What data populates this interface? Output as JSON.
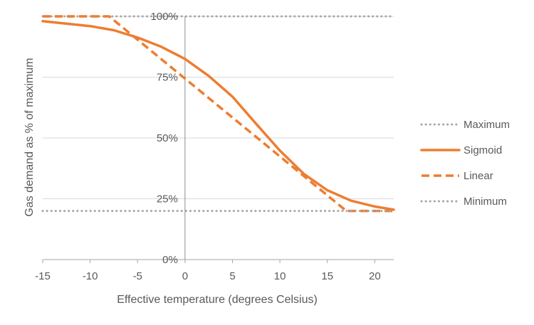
{
  "chart_data": {
    "type": "line",
    "title": "",
    "xlabel": "Effective temperature (degrees Celsius)",
    "ylabel": "Gas demand as % of maximum",
    "xlim": [
      -15,
      22
    ],
    "ylim": [
      0,
      100
    ],
    "x_ticks": [
      -15,
      -10,
      -5,
      0,
      5,
      10,
      15,
      20
    ],
    "y_ticks": [
      0,
      25,
      50,
      75,
      100
    ],
    "y_tick_labels": [
      "0%",
      "25%",
      "50%",
      "75%",
      "100%"
    ],
    "grid": "horizontal",
    "legend_position": "right",
    "series": [
      {
        "name": "Maximum",
        "style": "dotted",
        "color": "#a6a6a6",
        "points": [
          [
            -15,
            100
          ],
          [
            22,
            100
          ]
        ]
      },
      {
        "name": "Sigmoid",
        "style": "solid",
        "color": "#ed7d31",
        "points": [
          [
            -15,
            98
          ],
          [
            -12.5,
            97
          ],
          [
            -10,
            96
          ],
          [
            -7.5,
            94.3
          ],
          [
            -5,
            91.3
          ],
          [
            -2.5,
            87.5
          ],
          [
            0,
            82.5
          ],
          [
            2.5,
            75.5
          ],
          [
            5,
            67
          ],
          [
            7.5,
            55.8
          ],
          [
            10,
            44.8
          ],
          [
            12.5,
            35.3
          ],
          [
            15,
            28.5
          ],
          [
            17.5,
            24.2
          ],
          [
            20,
            21.8
          ],
          [
            22,
            20.5
          ]
        ]
      },
      {
        "name": "Linear",
        "style": "dashed",
        "color": "#ed7d31",
        "points": [
          [
            -15,
            100
          ],
          [
            -8,
            100
          ],
          [
            17,
            20
          ],
          [
            22,
            20
          ]
        ]
      },
      {
        "name": "Minimum",
        "style": "dotted",
        "color": "#a6a6a6",
        "points": [
          [
            -15,
            20
          ],
          [
            22,
            20
          ]
        ]
      }
    ]
  }
}
